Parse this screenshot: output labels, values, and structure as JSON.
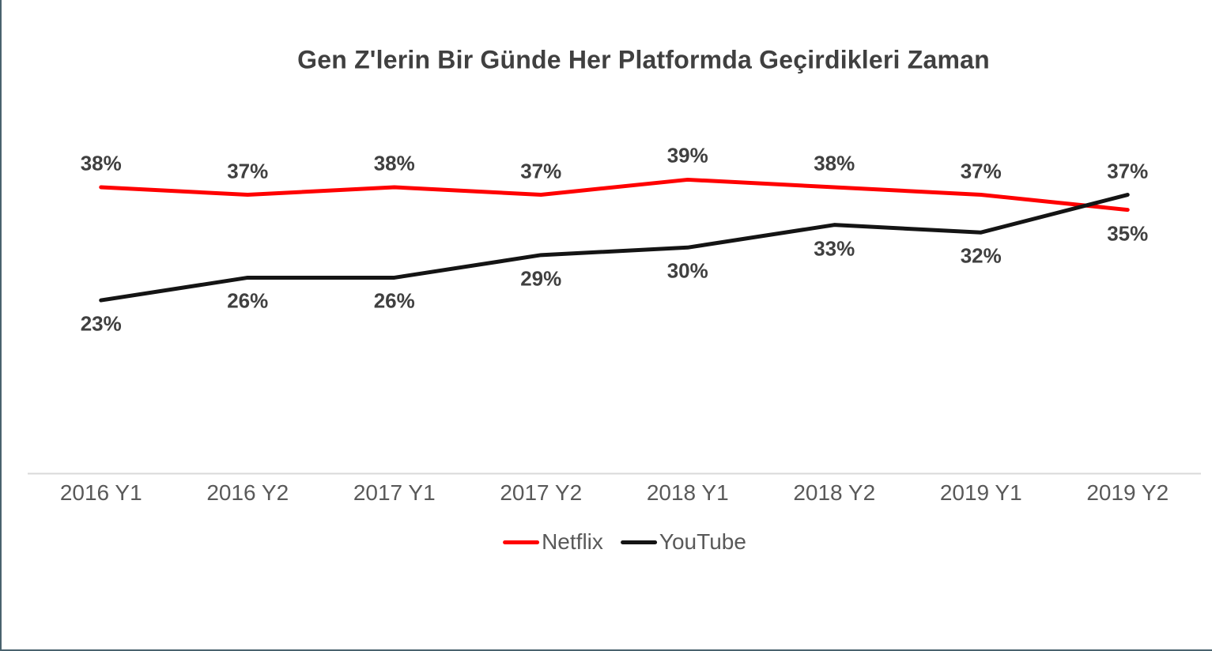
{
  "window": {
    "background": "#ffffff",
    "edge_border_color": "#4a626e"
  },
  "chart_data": {
    "type": "line",
    "title": "Gen Z'lerin Bir Günde Her Platformda Geçirdikleri Zaman",
    "categories": [
      "2016 Y1",
      "2016 Y2",
      "2017 Y1",
      "2017 Y2",
      "2018 Y1",
      "2018 Y2",
      "2019 Y1",
      "2019 Y2"
    ],
    "series": [
      {
        "name": "Netflix",
        "color": "#ff0000",
        "values": [
          38,
          37,
          38,
          37,
          39,
          38,
          37,
          35
        ],
        "data_labels": [
          "38%",
          "37%",
          "38%",
          "37%",
          "39%",
          "38%",
          "37%",
          "35%"
        ],
        "label_sides": [
          "above",
          "above",
          "above",
          "above",
          "above",
          "above",
          "above",
          "below"
        ]
      },
      {
        "name": "YouTube",
        "color": "#141414",
        "values": [
          23,
          26,
          26,
          29,
          30,
          33,
          32,
          37
        ],
        "data_labels": [
          "23%",
          "26%",
          "26%",
          "29%",
          "30%",
          "33%",
          "32%",
          "37%"
        ],
        "label_sides": [
          "below",
          "below",
          "below",
          "below",
          "below",
          "below",
          "below",
          "above"
        ]
      }
    ],
    "xlabel": "",
    "ylabel": "",
    "ylim": [
      0,
      45
    ],
    "grid": false,
    "y_axis_visible": false,
    "x_axis_line_color": "#d9d9d9",
    "legend_position": "bottom",
    "title_color": "#404040",
    "data_label_color": "#404040",
    "axis_label_color": "#595959",
    "legend_text_color": "#595959"
  }
}
